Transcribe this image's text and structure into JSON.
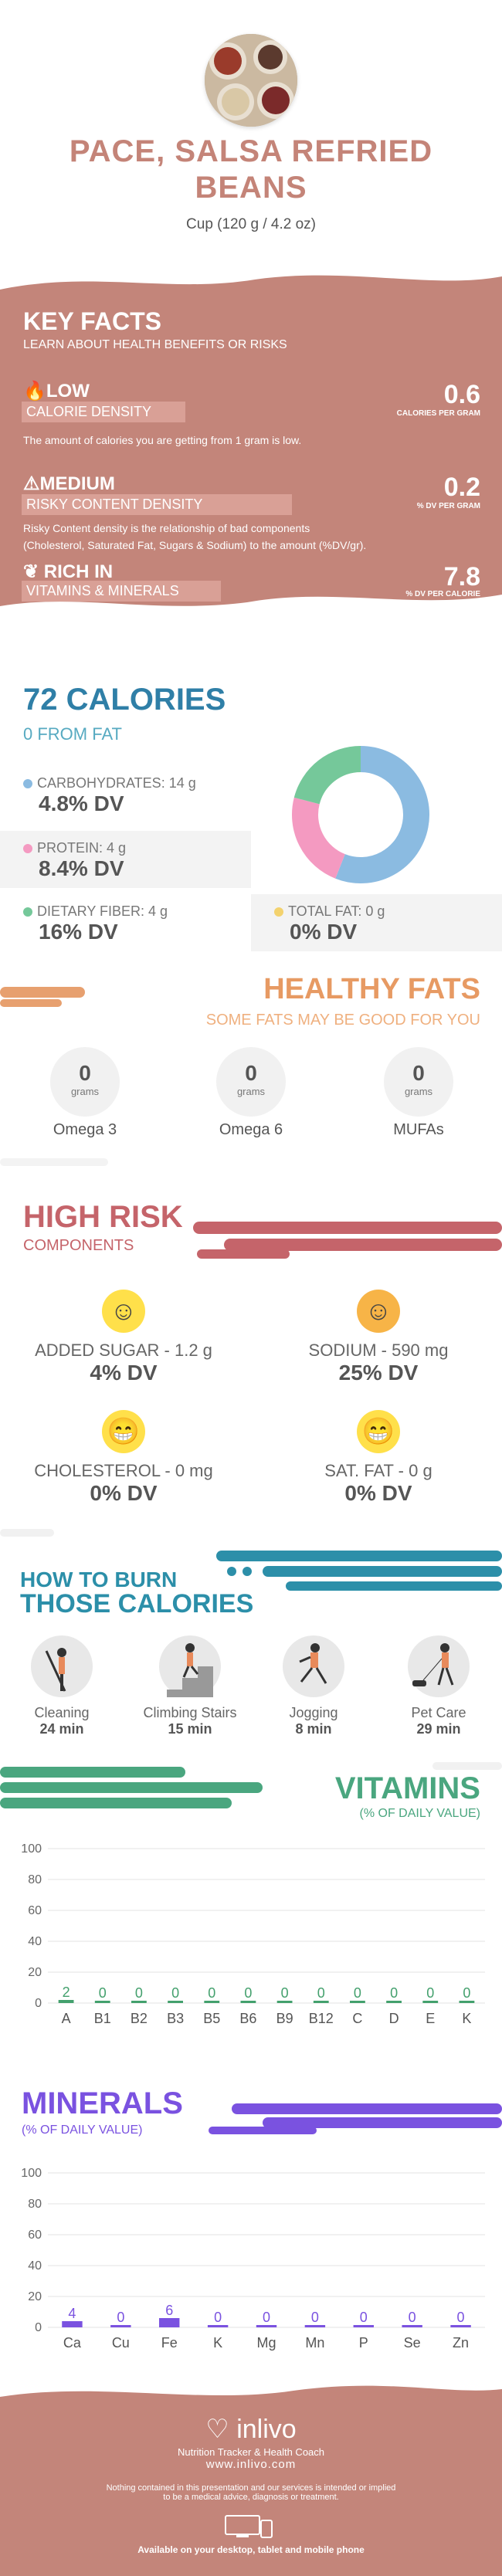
{
  "header": {
    "title_line1": "PACE, SALSA REFRIED",
    "title_line2": "BEANS",
    "serving": "Cup (120 g / 4.2 oz)"
  },
  "key_facts": {
    "title": "KEY FACTS",
    "subtitle": "LEARN ABOUT HEALTH BENEFITS OR RISKS",
    "calorie": {
      "level": "LOW",
      "label": "CALORIE DENSITY",
      "value": "0.6",
      "unit": "CALORIES PER GRAM",
      "desc": "The amount of calories you are getting from 1 gram is low."
    },
    "risky": {
      "level": "MEDIUM",
      "label": "RISKY CONTENT DENSITY",
      "value": "0.2",
      "unit": "% DV PER GRAM",
      "desc1": "Risky Content density is the relationship of bad components",
      "desc2": "(Cholesterol, Saturated Fat, Sugars & Sodium) to the amount (%DV/gr)."
    },
    "vitamins": {
      "level": "RICH  IN",
      "label": "VITAMINS & MINERALS",
      "value": "7.8",
      "unit": "% DV PER CALORIE"
    }
  },
  "calories": {
    "title": "72 CALORIES",
    "from_fat": "0 FROM FAT",
    "carbs": {
      "label": "CARBOHYDRATES: 14 g",
      "dv": "4.8% DV"
    },
    "protein": {
      "label": "PROTEIN: 4 g",
      "dv": "8.4% DV"
    },
    "fiber": {
      "label": "DIETARY FIBER: 4 g",
      "dv": "16% DV"
    },
    "fat": {
      "label": "TOTAL FAT: 0 g",
      "dv": "0% DV"
    },
    "colors": {
      "carbs": "#8bbbe1",
      "protein": "#f49ac1",
      "fiber": "#75c89a",
      "fat": "#f3d26e"
    },
    "donut": {
      "carbs": 0.56,
      "protein": 0.23,
      "fiber": 0.21
    }
  },
  "healthy_fats": {
    "title": "HEALTHY FATS",
    "subtitle": "SOME FATS MAY BE GOOD FOR YOU",
    "items": [
      {
        "value": "0",
        "unit": "grams",
        "name": "Omega 3"
      },
      {
        "value": "0",
        "unit": "grams",
        "name": "Omega 6"
      },
      {
        "value": "0",
        "unit": "grams",
        "name": "MUFAs"
      }
    ]
  },
  "high_risk": {
    "title": "HIGH RISK",
    "subtitle": "COMPONENTS",
    "items": [
      {
        "label": "ADDED SUGAR - 1.2 g",
        "dv": "4% DV",
        "face": "smile"
      },
      {
        "label": "SODIUM - 590 mg",
        "dv": "25% DV",
        "face": "smile"
      },
      {
        "label": "CHOLESTEROL - 0 mg",
        "dv": "0% DV",
        "face": "grin"
      },
      {
        "label": "SAT. FAT - 0 g",
        "dv": "0% DV",
        "face": "grin"
      }
    ]
  },
  "burn": {
    "title1": "HOW TO BURN",
    "title2": "THOSE CALORIES",
    "items": [
      {
        "name": "Cleaning",
        "time": "24 min"
      },
      {
        "name": "Climbing Stairs",
        "time": "15 min"
      },
      {
        "name": "Jogging",
        "time": "8 min"
      },
      {
        "name": "Pet Care",
        "time": "29 min"
      }
    ]
  },
  "vitamins": {
    "title": "VITAMINS",
    "subtitle": "(% OF DAILY VALUE)",
    "chart_data": {
      "type": "bar",
      "categories": [
        "A",
        "B1",
        "B2",
        "B3",
        "B5",
        "B6",
        "B9",
        "B12",
        "C",
        "D",
        "E",
        "K"
      ],
      "values": [
        2,
        0,
        0,
        0,
        0,
        0,
        0,
        0,
        0,
        0,
        0,
        0
      ],
      "ylim": [
        0,
        100
      ],
      "yticks": [
        "100",
        "80",
        "60",
        "40",
        "20",
        "0"
      ]
    }
  },
  "minerals": {
    "title": "MINERALS",
    "subtitle": "(% OF DAILY VALUE)",
    "chart_data": {
      "type": "bar",
      "categories": [
        "Ca",
        "Cu",
        "Fe",
        "K",
        "Mg",
        "Mn",
        "P",
        "Se",
        "Zn"
      ],
      "values": [
        4,
        0,
        6,
        0,
        0,
        0,
        0,
        0,
        0
      ],
      "ylim": [
        0,
        100
      ],
      "yticks": [
        "100",
        "80",
        "60",
        "40",
        "20",
        "0"
      ]
    }
  },
  "footer": {
    "brand": "inlivo",
    "tagline": "Nutrition Tracker & Health Coach",
    "url": "www.inlivo.com",
    "disclaimer1": "Nothing contained in this presentation and our services is intended or implied",
    "disclaimer2": "to be a medical advice, diagnosis or treatment.",
    "available": "Available on your desktop, tablet and mobile phone"
  }
}
